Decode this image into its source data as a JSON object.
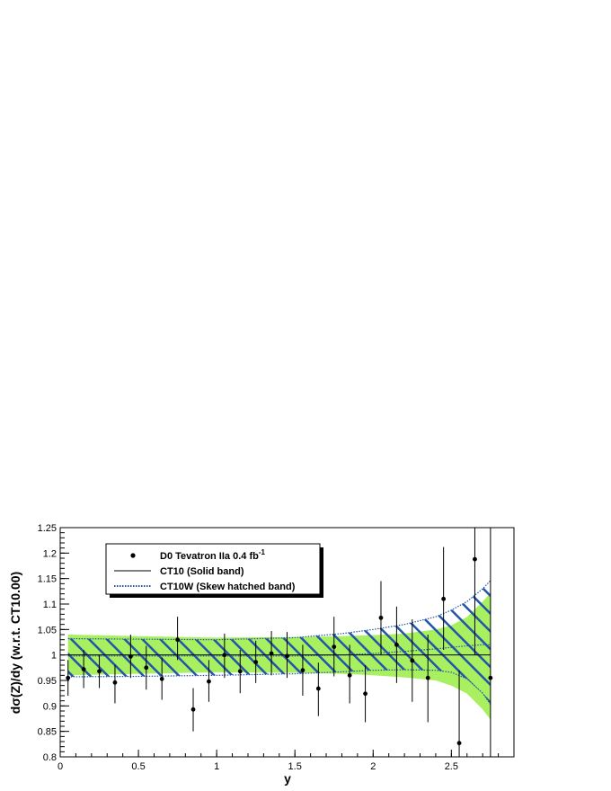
{
  "chart_data": {
    "type": "scatter",
    "xlabel": "y",
    "ylabel": "dσ(Z)/dy (w.r.t. CT10.00)",
    "xlim": [
      0,
      2.9
    ],
    "ylim": [
      0.8,
      1.25
    ],
    "x_ticks": [
      {
        "v": 0,
        "label": "0"
      },
      {
        "v": 0.5,
        "label": "0.5"
      },
      {
        "v": 1,
        "label": "1"
      },
      {
        "v": 1.5,
        "label": "1.5"
      },
      {
        "v": 2,
        "label": "2"
      },
      {
        "v": 2.5,
        "label": "2.5"
      }
    ],
    "y_ticks": [
      {
        "v": 0.8,
        "label": "0.8"
      },
      {
        "v": 0.85,
        "label": "0.85"
      },
      {
        "v": 0.9,
        "label": "0.9"
      },
      {
        "v": 0.95,
        "label": "0.95"
      },
      {
        "v": 1,
        "label": "1"
      },
      {
        "v": 1.05,
        "label": "1.05"
      },
      {
        "v": 1.1,
        "label": "1.1"
      },
      {
        "v": 1.15,
        "label": "1.15"
      },
      {
        "v": 1.2,
        "label": "1.2"
      },
      {
        "v": 1.25,
        "label": "1.25"
      }
    ],
    "legend": {
      "placement": "top-left",
      "entries": [
        {
          "label": "D0 Tevatron IIa 0.4 fb",
          "sup": "-1",
          "marker": "point"
        },
        {
          "label": "CT10 (Solid band)",
          "marker": "solid-line"
        },
        {
          "label": "CT10W (Skew hatched band)",
          "marker": "dotted-line"
        }
      ]
    },
    "series": [
      {
        "name": "D0 Tevatron IIa 0.4 fb-1",
        "type": "errorbar",
        "color": "#000000",
        "points": [
          {
            "x": 0.05,
            "y": 0.955,
            "lo": 0.92,
            "hi": 0.99
          },
          {
            "x": 0.15,
            "y": 0.972,
            "lo": 0.935,
            "hi": 1.01
          },
          {
            "x": 0.25,
            "y": 0.968,
            "lo": 0.935,
            "hi": 1.0
          },
          {
            "x": 0.35,
            "y": 0.946,
            "lo": 0.905,
            "hi": 0.98
          },
          {
            "x": 0.45,
            "y": 0.997,
            "lo": 0.955,
            "hi": 1.04
          },
          {
            "x": 0.55,
            "y": 0.975,
            "lo": 0.932,
            "hi": 1.018
          },
          {
            "x": 0.65,
            "y": 0.953,
            "lo": 0.912,
            "hi": 0.995
          },
          {
            "x": 0.75,
            "y": 1.03,
            "lo": 0.99,
            "hi": 1.075
          },
          {
            "x": 0.85,
            "y": 0.893,
            "lo": 0.85,
            "hi": 0.935
          },
          {
            "x": 0.95,
            "y": 0.948,
            "lo": 0.908,
            "hi": 0.99
          },
          {
            "x": 1.05,
            "y": 1.0,
            "lo": 0.955,
            "hi": 1.042
          },
          {
            "x": 1.15,
            "y": 0.968,
            "lo": 0.925,
            "hi": 1.01
          },
          {
            "x": 1.25,
            "y": 0.986,
            "lo": 0.945,
            "hi": 1.028
          },
          {
            "x": 1.35,
            "y": 1.003,
            "lo": 0.96,
            "hi": 1.047
          },
          {
            "x": 1.45,
            "y": 0.998,
            "lo": 0.955,
            "hi": 1.045
          },
          {
            "x": 1.55,
            "y": 0.97,
            "lo": 0.92,
            "hi": 1.02
          },
          {
            "x": 1.65,
            "y": 0.934,
            "lo": 0.88,
            "hi": 0.985
          },
          {
            "x": 1.75,
            "y": 1.016,
            "lo": 0.958,
            "hi": 1.075
          },
          {
            "x": 1.85,
            "y": 0.96,
            "lo": 0.905,
            "hi": 1.02
          },
          {
            "x": 1.95,
            "y": 0.924,
            "lo": 0.868,
            "hi": 0.98
          },
          {
            "x": 2.05,
            "y": 1.073,
            "lo": 1.0,
            "hi": 1.145
          },
          {
            "x": 2.15,
            "y": 1.02,
            "lo": 0.945,
            "hi": 1.095
          },
          {
            "x": 2.25,
            "y": 0.989,
            "lo": 0.908,
            "hi": 1.07
          },
          {
            "x": 2.35,
            "y": 0.955,
            "lo": 0.868,
            "hi": 1.04
          },
          {
            "x": 2.45,
            "y": 1.11,
            "lo": 1.01,
            "hi": 1.212
          },
          {
            "x": 2.55,
            "y": 0.827,
            "lo": 0.8,
            "hi": 0.97
          },
          {
            "x": 2.65,
            "y": 1.188,
            "lo": 1.0,
            "hi": 1.25
          },
          {
            "x": 2.75,
            "y": 0.955,
            "lo": 0.8,
            "hi": 1.25
          }
        ]
      },
      {
        "name": "CT10 (Solid band)",
        "type": "band",
        "fill": "#a8f060",
        "central": 1.0,
        "x": [
          0.05,
          0.5,
          1.0,
          1.5,
          1.8,
          2.0,
          2.2,
          2.4,
          2.5,
          2.6,
          2.7,
          2.75
        ],
        "upper": [
          1.04,
          1.037,
          1.034,
          1.035,
          1.037,
          1.039,
          1.042,
          1.05,
          1.058,
          1.075,
          1.105,
          1.122
        ],
        "lower": [
          0.96,
          0.963,
          0.966,
          0.965,
          0.963,
          0.96,
          0.956,
          0.95,
          0.94,
          0.924,
          0.893,
          0.873
        ]
      },
      {
        "name": "CT10W (Skew hatched band)",
        "type": "band",
        "hatch": "#2255aa",
        "x": [
          0.05,
          0.5,
          1.0,
          1.5,
          1.8,
          2.0,
          2.2,
          2.4,
          2.5,
          2.6,
          2.7,
          2.75
        ],
        "central": [
          0.998,
          0.998,
          0.998,
          0.998,
          1.0,
          1.003,
          1.007,
          1.012,
          1.015,
          1.018,
          1.02,
          1.02
        ],
        "upper": [
          1.032,
          1.031,
          1.03,
          1.034,
          1.042,
          1.05,
          1.06,
          1.075,
          1.088,
          1.105,
          1.13,
          1.146
        ],
        "lower": [
          0.957,
          0.958,
          0.96,
          0.963,
          0.967,
          0.97,
          0.971,
          0.97,
          0.966,
          0.953,
          0.925,
          0.903
        ]
      }
    ]
  }
}
